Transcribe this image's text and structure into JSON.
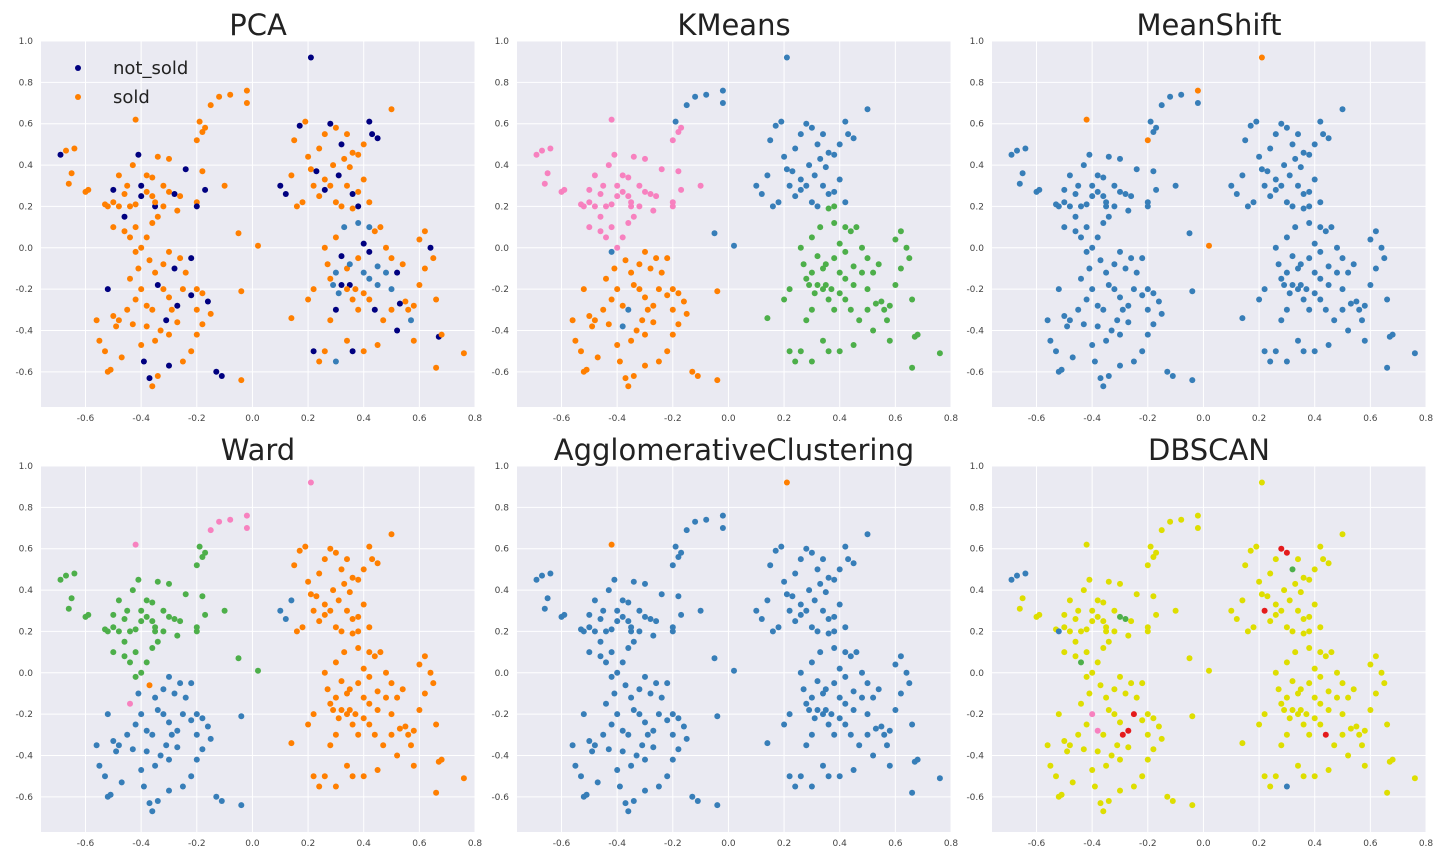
{
  "palette": {
    "blue": "#377eb8",
    "orange": "#ff7f00",
    "green": "#4daf4a",
    "pink": "#f781bf",
    "navy": "#000080",
    "yellow": "#dede00",
    "brown": "#a65628",
    "purple": "#984ea3",
    "gray": "#999999",
    "red": "#e41a1c"
  },
  "chart_data": [
    {
      "type": "scatter",
      "title": "PCA",
      "legend": [
        {
          "label": "not_sold",
          "color": "#000080"
        },
        {
          "label": "sold",
          "color": "#ff7f00"
        }
      ],
      "legend_position": "upper-left",
      "xlim": [
        -0.76,
        0.8
      ],
      "ylim": [
        -0.77,
        1.0
      ],
      "xticks": [
        "-0.6",
        "-0.4",
        "-0.2",
        "0.0",
        "0.2",
        "0.4",
        "0.6",
        "0.8"
      ],
      "yticks": [
        "1.0",
        "0.8",
        "0.6",
        "0.4",
        "0.2",
        "0.0",
        "-0.2",
        "-0.4",
        "-0.6"
      ],
      "grid": true
    },
    {
      "type": "scatter",
      "title": "KMeans",
      "xlim": [
        -0.76,
        0.8
      ],
      "ylim": [
        -0.77,
        1.0
      ],
      "xticks": [
        "-0.6",
        "-0.4",
        "-0.2",
        "0.0",
        "0.2",
        "0.4",
        "0.6",
        "0.8"
      ],
      "yticks": [
        "1.0",
        "0.8",
        "0.6",
        "0.4",
        "0.2",
        "0.0",
        "-0.2",
        "-0.4",
        "-0.6"
      ],
      "grid": true
    },
    {
      "type": "scatter",
      "title": "MeanShift",
      "xlim": [
        -0.76,
        0.8
      ],
      "ylim": [
        -0.77,
        1.0
      ],
      "xticks": [
        "-0.6",
        "-0.4",
        "-0.2",
        "0.0",
        "0.2",
        "0.4",
        "0.6",
        "0.8"
      ],
      "yticks": [
        "1.0",
        "0.8",
        "0.6",
        "0.4",
        "0.2",
        "0.0",
        "-0.2",
        "-0.4",
        "-0.6"
      ],
      "grid": true
    },
    {
      "type": "scatter",
      "title": "Ward",
      "xlim": [
        -0.76,
        0.8
      ],
      "ylim": [
        -0.77,
        1.0
      ],
      "xticks": [
        "-0.6",
        "-0.4",
        "-0.2",
        "0.0",
        "0.2",
        "0.4",
        "0.6",
        "0.8"
      ],
      "yticks": [
        "1.0",
        "0.8",
        "0.6",
        "0.4",
        "0.2",
        "0.0",
        "-0.2",
        "-0.4",
        "-0.6"
      ],
      "grid": true
    },
    {
      "type": "scatter",
      "title": "AgglomerativeClustering",
      "xlim": [
        -0.76,
        0.8
      ],
      "ylim": [
        -0.77,
        1.0
      ],
      "xticks": [
        "-0.6",
        "-0.4",
        "-0.2",
        "0.0",
        "0.2",
        "0.4",
        "0.6",
        "0.8"
      ],
      "yticks": [
        "1.0",
        "0.8",
        "0.6",
        "0.4",
        "0.2",
        "0.0",
        "-0.2",
        "-0.4",
        "-0.6"
      ],
      "grid": true
    },
    {
      "type": "scatter",
      "title": "DBSCAN",
      "xlim": [
        -0.76,
        0.8
      ],
      "ylim": [
        -0.77,
        1.0
      ],
      "xticks": [
        "-0.6",
        "-0.4",
        "-0.2",
        "0.0",
        "0.2",
        "0.4",
        "0.6",
        "0.8"
      ],
      "yticks": [
        "1.0",
        "0.8",
        "0.6",
        "0.4",
        "0.2",
        "0.0",
        "-0.2",
        "-0.4",
        "-0.6"
      ],
      "grid": true
    }
  ],
  "points": [
    [
      0.21,
      0.92
    ],
    [
      -0.12,
      0.73
    ],
    [
      -0.08,
      0.74
    ],
    [
      -0.02,
      0.76
    ],
    [
      -0.02,
      0.7
    ],
    [
      -0.15,
      0.69
    ],
    [
      -0.19,
      0.61
    ],
    [
      -0.17,
      0.58
    ],
    [
      -0.18,
      0.56
    ],
    [
      -0.2,
      0.52
    ],
    [
      -0.42,
      0.62
    ],
    [
      -0.69,
      0.45
    ],
    [
      -0.67,
      0.47
    ],
    [
      -0.64,
      0.48
    ],
    [
      -0.65,
      0.36
    ],
    [
      -0.66,
      0.31
    ],
    [
      -0.6,
      0.27
    ],
    [
      -0.59,
      0.28
    ],
    [
      -0.53,
      0.21
    ],
    [
      -0.5,
      0.22
    ],
    [
      -0.48,
      0.2
    ],
    [
      -0.46,
      0.15
    ],
    [
      -0.44,
      0.2
    ],
    [
      -0.42,
      0.21
    ],
    [
      -0.4,
      0.25
    ],
    [
      -0.38,
      0.27
    ],
    [
      -0.36,
      0.25
    ],
    [
      -0.35,
      0.2
    ],
    [
      -0.34,
      0.15
    ],
    [
      -0.32,
      0.3
    ],
    [
      -0.3,
      0.43
    ],
    [
      -0.28,
      0.26
    ],
    [
      -0.26,
      0.25
    ],
    [
      -0.4,
      0.3
    ],
    [
      -0.38,
      0.35
    ],
    [
      -0.36,
      0.34
    ],
    [
      -0.34,
      0.44
    ],
    [
      -0.45,
      0.3
    ],
    [
      -0.43,
      0.4
    ],
    [
      -0.41,
      0.45
    ],
    [
      -0.48,
      0.35
    ],
    [
      -0.5,
      0.28
    ],
    [
      -0.52,
      0.2
    ],
    [
      -0.5,
      0.1
    ],
    [
      -0.46,
      0.08
    ],
    [
      -0.44,
      0.05
    ],
    [
      -0.42,
      0.1
    ],
    [
      -0.4,
      0.0
    ],
    [
      -0.38,
      0.05
    ],
    [
      -0.36,
      0.12
    ],
    [
      -0.35,
      0.22
    ],
    [
      -0.27,
      0.18
    ],
    [
      -0.24,
      0.38
    ],
    [
      -0.3,
      0.27
    ],
    [
      -0.32,
      0.2
    ],
    [
      -0.46,
      0.26
    ],
    [
      -0.2,
      0.22
    ],
    [
      -0.2,
      0.2
    ],
    [
      -0.17,
      0.28
    ],
    [
      -0.1,
      0.3
    ],
    [
      -0.18,
      0.37
    ],
    [
      -0.05,
      0.07
    ],
    [
      0.02,
      0.01
    ],
    [
      -0.42,
      -0.02
    ],
    [
      -0.41,
      -0.1
    ],
    [
      -0.44,
      -0.15
    ],
    [
      -0.37,
      -0.06
    ],
    [
      -0.35,
      -0.12
    ],
    [
      -0.34,
      -0.18
    ],
    [
      -0.32,
      -0.2
    ],
    [
      -0.3,
      -0.24
    ],
    [
      -0.28,
      -0.1
    ],
    [
      -0.26,
      -0.05
    ],
    [
      -0.25,
      -0.2
    ],
    [
      -0.27,
      -0.28
    ],
    [
      -0.29,
      -0.3
    ],
    [
      -0.31,
      -0.35
    ],
    [
      -0.33,
      -0.4
    ],
    [
      -0.35,
      -0.45
    ],
    [
      -0.38,
      -0.28
    ],
    [
      -0.4,
      -0.2
    ],
    [
      -0.42,
      -0.25
    ],
    [
      -0.45,
      -0.3
    ],
    [
      -0.48,
      -0.35
    ],
    [
      -0.5,
      -0.33
    ],
    [
      -0.52,
      -0.2
    ],
    [
      -0.49,
      -0.38
    ],
    [
      -0.53,
      -0.5
    ],
    [
      -0.52,
      -0.6
    ],
    [
      -0.51,
      -0.59
    ],
    [
      -0.47,
      -0.53
    ],
    [
      -0.4,
      -0.47
    ],
    [
      -0.37,
      -0.63
    ],
    [
      -0.36,
      -0.67
    ],
    [
      -0.34,
      -0.62
    ],
    [
      -0.3,
      -0.57
    ],
    [
      -0.25,
      -0.55
    ],
    [
      -0.22,
      -0.5
    ],
    [
      -0.2,
      -0.42
    ],
    [
      -0.18,
      -0.37
    ],
    [
      -0.2,
      -0.3
    ],
    [
      -0.22,
      -0.23
    ],
    [
      -0.2,
      -0.2
    ],
    [
      -0.18,
      -0.22
    ],
    [
      -0.16,
      -0.26
    ],
    [
      -0.15,
      -0.32
    ],
    [
      -0.13,
      -0.6
    ],
    [
      -0.11,
      -0.62
    ],
    [
      -0.04,
      -0.64
    ],
    [
      -0.04,
      -0.21
    ],
    [
      -0.24,
      -0.12
    ],
    [
      -0.22,
      -0.05
    ],
    [
      -0.3,
      -0.02
    ],
    [
      -0.32,
      -0.08
    ],
    [
      -0.56,
      -0.35
    ],
    [
      -0.55,
      -0.45
    ],
    [
      -0.43,
      -0.37
    ],
    [
      -0.39,
      -0.55
    ],
    [
      -0.3,
      -0.42
    ],
    [
      -0.27,
      -0.36
    ],
    [
      -0.36,
      -0.3
    ],
    [
      -0.38,
      -0.38
    ],
    [
      0.1,
      0.3
    ],
    [
      0.12,
      0.26
    ],
    [
      0.14,
      0.35
    ],
    [
      0.15,
      0.52
    ],
    [
      0.17,
      0.59
    ],
    [
      0.19,
      0.61
    ],
    [
      0.21,
      0.38
    ],
    [
      0.23,
      0.37
    ],
    [
      0.24,
      0.48
    ],
    [
      0.26,
      0.55
    ],
    [
      0.28,
      0.6
    ],
    [
      0.3,
      0.58
    ],
    [
      0.32,
      0.5
    ],
    [
      0.34,
      0.55
    ],
    [
      0.36,
      0.46
    ],
    [
      0.38,
      0.45
    ],
    [
      0.4,
      0.5
    ],
    [
      0.42,
      0.61
    ],
    [
      0.43,
      0.55
    ],
    [
      0.45,
      0.53
    ],
    [
      0.5,
      0.67
    ],
    [
      0.22,
      0.3
    ],
    [
      0.24,
      0.25
    ],
    [
      0.26,
      0.28
    ],
    [
      0.28,
      0.3
    ],
    [
      0.3,
      0.22
    ],
    [
      0.32,
      0.2
    ],
    [
      0.34,
      0.3
    ],
    [
      0.36,
      0.26
    ],
    [
      0.38,
      0.27
    ],
    [
      0.4,
      0.33
    ],
    [
      0.42,
      0.22
    ],
    [
      0.18,
      0.22
    ],
    [
      0.16,
      0.2
    ],
    [
      0.26,
      0.33
    ],
    [
      0.29,
      0.4
    ],
    [
      0.31,
      0.35
    ],
    [
      0.33,
      0.43
    ],
    [
      0.35,
      0.39
    ],
    [
      0.2,
      0.44
    ],
    [
      0.36,
      0.19
    ],
    [
      0.38,
      0.2
    ],
    [
      0.26,
      0.0
    ],
    [
      0.27,
      -0.08
    ],
    [
      0.28,
      -0.15
    ],
    [
      0.3,
      0.05
    ],
    [
      0.32,
      -0.04
    ],
    [
      0.34,
      -0.1
    ],
    [
      0.35,
      -0.18
    ],
    [
      0.37,
      -0.2
    ],
    [
      0.38,
      -0.05
    ],
    [
      0.4,
      0.02
    ],
    [
      0.42,
      -0.02
    ],
    [
      0.44,
      0.08
    ],
    [
      0.46,
      0.1
    ],
    [
      0.48,
      0.0
    ],
    [
      0.5,
      -0.05
    ],
    [
      0.52,
      -0.12
    ],
    [
      0.54,
      -0.08
    ],
    [
      0.56,
      -0.3
    ],
    [
      0.58,
      -0.28
    ],
    [
      0.6,
      -0.18
    ],
    [
      0.62,
      -0.1
    ],
    [
      0.64,
      0.0
    ],
    [
      0.65,
      -0.05
    ],
    [
      0.66,
      -0.25
    ],
    [
      0.67,
      -0.43
    ],
    [
      0.68,
      -0.42
    ],
    [
      0.6,
      0.04
    ],
    [
      0.62,
      0.08
    ],
    [
      0.55,
      -0.26
    ],
    [
      0.53,
      -0.27
    ],
    [
      0.5,
      -0.3
    ],
    [
      0.47,
      -0.35
    ],
    [
      0.44,
      -0.3
    ],
    [
      0.42,
      -0.25
    ],
    [
      0.4,
      -0.22
    ],
    [
      0.38,
      -0.3
    ],
    [
      0.36,
      -0.25
    ],
    [
      0.34,
      -0.2
    ],
    [
      0.32,
      -0.18
    ],
    [
      0.3,
      -0.3
    ],
    [
      0.28,
      -0.35
    ],
    [
      0.26,
      -0.5
    ],
    [
      0.24,
      -0.55
    ],
    [
      0.22,
      -0.5
    ],
    [
      0.14,
      -0.34
    ],
    [
      0.2,
      -0.25
    ],
    [
      0.22,
      -0.2
    ],
    [
      0.34,
      -0.45
    ],
    [
      0.36,
      -0.5
    ],
    [
      0.4,
      -0.5
    ],
    [
      0.45,
      -0.47
    ],
    [
      0.52,
      -0.4
    ],
    [
      0.58,
      -0.45
    ],
    [
      0.66,
      -0.58
    ],
    [
      0.76,
      -0.51
    ],
    [
      0.29,
      -0.18
    ],
    [
      0.31,
      -0.22
    ],
    [
      0.45,
      -0.18
    ],
    [
      0.5,
      -0.2
    ],
    [
      0.57,
      -0.35
    ],
    [
      0.4,
      -0.12
    ],
    [
      0.42,
      -0.15
    ],
    [
      0.48,
      -0.12
    ],
    [
      0.35,
      -0.08
    ],
    [
      0.3,
      -0.12
    ],
    [
      0.33,
      0.1
    ],
    [
      0.38,
      0.12
    ],
    [
      0.42,
      0.1
    ],
    [
      0.45,
      -0.09
    ],
    [
      0.3,
      -0.55
    ]
  ],
  "labels": {
    "PCA": "NOOOOOOOOOONOOOOOOOOONOONOONOOONONOOOOONONOOOOOOOOOONOOOONNOOOOOOOOONOONOONONOOOOOOOONOOOOOONOONOOOOONOONONNOOONOOOOONOOOONNOONOONOONONOOOONNNOOONOOOONOOOOOOONOOOONOOOONONOONNOOOONOOOOONOONOOOONOONOOOOONNOOONOOOONOONOOO",
    "KMeans": "BBBBBBBPPPPPPPPPPPPPPPPPPPPPPPPPPPPPPPPPPPPPPPPPPPPPPPPPPPPPPBBBOOOOOOOOOOOOOOOOOOOOOOOOOOOOOOOOOOOOOOOOOOOOOOOOOOOOOOOOBBBBBBBBBBBBBBBBBBBBBBBBBBBBBBBBBBBBBBBBBBGGGGGGGGGGGGGGGGGGGGGGGGGGGGGGGGGGGGGGGGGGGGGGGGGGGGGGGGGGGGGGGGGGGGGGGGG",
    "MeanShift": "OBBOBBBBBOOBBBBBBBBBBBBBBBBBBBBBBBBBBBBBBBBBBBBBBBBBBBBBBBBBBBOBBBBBBBBBBBBBBBBBBBBBBBBBBBBBBBBBBBBBBBBBBBBBBBBBBBBBBBBBBBBBBBBBBBBBBBBBBBBBBBBBBBBBBBBBBBBBBBBBBBBBBBBBBBBBBBBBBBBBBBBBBBBBBBBBBBBBBBBBBBBBBBBBBBBBBBBBBBBBBBBBB",
    "Ward": "PPPPPPGGGGPGGGGGGGGGGGGGGGGGGGGGGGGGGGGGGGGGGGGGGGGGGGGGGGGGGGGGBPOBBBBBBBBBBBBBBBBBBBBBBBBBBBBBBBBBBBBBBBBBBBBBBBBBBBBBBBBBBOOOOOOOOOOOOOOOOOOOOOOOOOOOOOOOOOOOOOOOOOOOOOOOOOOOOOOOOOOOOOOOOOOOOOOOOOOOOOOOOOOOOOOOOOOOOOOOOOOOOOOOOOOOOOOOOOOO",
    "AgglomerativeClustering": "OBBBBBBBBBOBBBBBBBBBBBBBBBBBBBBBBBBBBBBBBBBBBBBBBBBBBBBBBBBBBBBBBBBBBBBBBBBBBBBBBBBBBBBBBBBBBBBBBBBBBBBBBBBBBBBBBBBBBBBBBBBBBBBBBBBBBBBBBBBBBBBBBBBBBBBBBBBBBBBBBBBBBBBBBBBBBBBBBBBBBBBBBBBBBBBBBBBBBBBBBBBBBBBBBBBBBBBBBBBBBBBBBB",
    "DBSCAN": "YYYYYYYYYYYBBBYYYYYYYYYYYYYYYYYGYYYYYYYYYYBYYGYYYYYYYGYYYYYYYYYYYYYYYYYYYRRRYYYPPYYYYYYYYYYYYYYYYYYYYYYYYYYYYYYYYYYYYYYYYYYYYYYYYYYYRRGYYYYYYYYRYYYYYYYYYYYYYYYYYYYYYYYYYYYYYYYYYYYYYYYYYYYYYYYYYYYYRYYYYYYYYYYYYYYYYYYYYYYYYYYYYYYYYYYYY"
  }
}
